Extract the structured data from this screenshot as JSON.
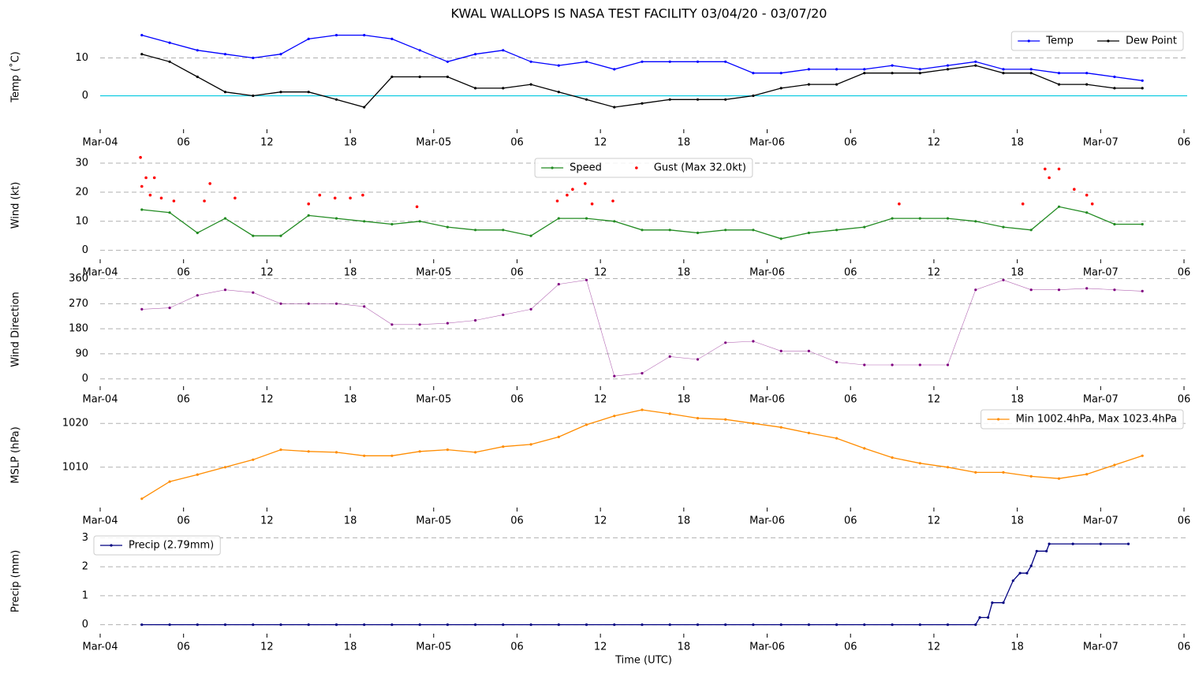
{
  "chart_data": [
    {
      "type": "line",
      "title": "KWAL WALLOPS IS NASA TEST FACILITY 03/04/20 - 03/07/20",
      "ylabel": "Temp ($^\\circ$C)",
      "x": [
        3,
        5,
        7,
        9,
        11,
        13,
        15,
        17,
        19,
        21,
        23,
        25,
        27,
        29,
        31,
        33,
        35,
        37,
        39,
        41,
        43,
        45,
        47,
        49,
        51,
        53,
        55,
        57,
        59,
        61,
        63,
        65,
        67,
        69,
        71,
        73,
        75
      ],
      "xlim": [
        0,
        78
      ],
      "xticks": [
        {
          "value": 0,
          "label": "Mar-04"
        },
        {
          "value": 6,
          "label": "06"
        },
        {
          "value": 12,
          "label": "12"
        },
        {
          "value": 18,
          "label": "18"
        },
        {
          "value": 24,
          "label": "Mar-05"
        },
        {
          "value": 30,
          "label": "06"
        },
        {
          "value": 36,
          "label": "12"
        },
        {
          "value": 42,
          "label": "18"
        },
        {
          "value": 48,
          "label": "Mar-06"
        },
        {
          "value": 54,
          "label": "06"
        },
        {
          "value": 60,
          "label": "12"
        },
        {
          "value": 66,
          "label": "18"
        },
        {
          "value": 72,
          "label": "Mar-07"
        },
        {
          "value": 78,
          "label": "06"
        }
      ],
      "ylim": [
        -8,
        18
      ],
      "yticks": [
        0,
        10
      ],
      "grid": true,
      "legend": "upper right",
      "hline": 0,
      "hline_color": "#00c8e0",
      "series": [
        {
          "name": "Temp",
          "color": "#0000ff",
          "values": [
            16,
            14,
            12,
            11,
            10,
            11,
            15,
            16,
            16,
            15,
            12,
            9,
            11,
            12,
            9,
            8,
            9,
            7,
            9,
            9,
            9,
            9,
            6,
            6,
            7,
            7,
            7,
            8,
            7,
            8,
            9,
            7,
            7,
            6,
            6,
            5,
            4
          ]
        },
        {
          "name": "Dew Point",
          "color": "#000000",
          "values": [
            11,
            9,
            5,
            1,
            0,
            1,
            1,
            -1,
            -3,
            5,
            5,
            5,
            2,
            2,
            3,
            1,
            -1,
            -3,
            -2,
            -1,
            -1,
            -1,
            0,
            2,
            3,
            3,
            6,
            6,
            6,
            7,
            8,
            6,
            6,
            3,
            3,
            2,
            2
          ]
        }
      ]
    },
    {
      "type": "line",
      "ylabel": "Wind (kt)",
      "x": [
        3,
        5,
        7,
        9,
        11,
        13,
        15,
        17,
        19,
        21,
        23,
        25,
        27,
        29,
        31,
        33,
        35,
        37,
        39,
        41,
        43,
        45,
        47,
        49,
        51,
        53,
        55,
        57,
        59,
        61,
        63,
        65,
        67,
        69,
        71,
        73,
        75
      ],
      "xlim": [
        0,
        78
      ],
      "xticks": [
        {
          "value": 0,
          "label": "Mar-04"
        },
        {
          "value": 6,
          "label": "06"
        },
        {
          "value": 12,
          "label": "12"
        },
        {
          "value": 18,
          "label": "18"
        },
        {
          "value": 24,
          "label": "Mar-05"
        },
        {
          "value": 30,
          "label": "06"
        },
        {
          "value": 36,
          "label": "12"
        },
        {
          "value": 42,
          "label": "18"
        },
        {
          "value": 48,
          "label": "Mar-06"
        },
        {
          "value": 54,
          "label": "06"
        },
        {
          "value": 60,
          "label": "12"
        },
        {
          "value": 66,
          "label": "18"
        },
        {
          "value": 72,
          "label": "Mar-07"
        },
        {
          "value": 78,
          "label": "06"
        }
      ],
      "ylim": [
        -2,
        33
      ],
      "yticks": [
        0,
        10,
        20,
        30
      ],
      "grid": true,
      "legend": "upper center",
      "series": [
        {
          "name": "Speed",
          "color": "#228b22",
          "values": [
            14,
            13,
            6,
            11,
            5,
            5,
            12,
            11,
            10,
            9,
            10,
            8,
            7,
            7,
            5,
            11,
            11,
            10,
            7,
            7,
            6,
            7,
            7,
            4,
            6,
            7,
            8,
            11,
            11,
            11,
            10,
            8,
            7,
            15,
            13,
            9,
            9
          ]
        },
        {
          "name": "Gust (Max 32.0kt)",
          "color": "#ff0000",
          "kind": "scatter",
          "x": [
            2.9,
            3.0,
            3.3,
            3.6,
            3.9,
            4.4,
            5.3,
            7.5,
            7.9,
            9.7,
            15.0,
            15.8,
            16.9,
            18.0,
            18.9,
            22.8,
            32.9,
            33.6,
            34.0,
            34.9,
            35.4,
            36.9,
            57.5,
            66.4,
            68.0,
            68.3,
            69.0,
            70.1,
            71.0,
            71.4
          ],
          "values": [
            32,
            22,
            25,
            19,
            25,
            18,
            17,
            17,
            23,
            18,
            16,
            19,
            18,
            18,
            19,
            15,
            17,
            19,
            21,
            23,
            16,
            17,
            16,
            16,
            28,
            25,
            28,
            21,
            19,
            16
          ]
        }
      ]
    },
    {
      "type": "line",
      "ylabel": "Wind Direction",
      "x": [
        3,
        5,
        7,
        9,
        11,
        13,
        15,
        17,
        19,
        21,
        23,
        25,
        27,
        29,
        31,
        33,
        35,
        37,
        39,
        41,
        43,
        45,
        47,
        49,
        51,
        53,
        55,
        57,
        59,
        61,
        63,
        65,
        67,
        69,
        71,
        73,
        75
      ],
      "xlim": [
        0,
        78
      ],
      "xticks": [
        {
          "value": 0,
          "label": "Mar-04"
        },
        {
          "value": 6,
          "label": "06"
        },
        {
          "value": 12,
          "label": "12"
        },
        {
          "value": 18,
          "label": "18"
        },
        {
          "value": 24,
          "label": "Mar-05"
        },
        {
          "value": 30,
          "label": "06"
        },
        {
          "value": 36,
          "label": "12"
        },
        {
          "value": 42,
          "label": "18"
        },
        {
          "value": 48,
          "label": "Mar-06"
        },
        {
          "value": 54,
          "label": "06"
        },
        {
          "value": 60,
          "label": "12"
        },
        {
          "value": 66,
          "label": "18"
        },
        {
          "value": 72,
          "label": "Mar-07"
        },
        {
          "value": 78,
          "label": "06"
        }
      ],
      "ylim": [
        -15,
        370
      ],
      "yticks": [
        0,
        90,
        180,
        270,
        360
      ],
      "grid": true,
      "series": [
        {
          "color": "#800080",
          "thin_line": true,
          "values": [
            250,
            255,
            300,
            320,
            310,
            270,
            270,
            270,
            260,
            195,
            195,
            200,
            210,
            230,
            250,
            340,
            355,
            10,
            20,
            80,
            70,
            130,
            135,
            100,
            100,
            60,
            50,
            50,
            50,
            50,
            320,
            355,
            320,
            320,
            325,
            320,
            315
          ]
        }
      ]
    },
    {
      "type": "line",
      "ylabel": "MSLP (hPa)",
      "x": [
        3,
        5,
        7,
        9,
        11,
        13,
        15,
        17,
        19,
        21,
        23,
        25,
        27,
        29,
        31,
        33,
        35,
        37,
        39,
        41,
        43,
        45,
        47,
        49,
        51,
        53,
        55,
        57,
        59,
        61,
        63,
        65,
        67,
        69,
        71,
        73,
        75
      ],
      "xlim": [
        0,
        78
      ],
      "xticks": [
        {
          "value": 0,
          "label": "Mar-04"
        },
        {
          "value": 6,
          "label": "06"
        },
        {
          "value": 12,
          "label": "12"
        },
        {
          "value": 18,
          "label": "18"
        },
        {
          "value": 24,
          "label": "Mar-05"
        },
        {
          "value": 30,
          "label": "06"
        },
        {
          "value": 36,
          "label": "12"
        },
        {
          "value": 42,
          "label": "18"
        },
        {
          "value": 48,
          "label": "Mar-06"
        },
        {
          "value": 54,
          "label": "06"
        },
        {
          "value": 60,
          "label": "12"
        },
        {
          "value": 66,
          "label": "18"
        },
        {
          "value": 72,
          "label": "Mar-07"
        },
        {
          "value": 78,
          "label": "06"
        }
      ],
      "ylim": [
        1001.5,
        1024
      ],
      "yticks": [
        1010,
        1020
      ],
      "grid": true,
      "legend": "upper right",
      "series": [
        {
          "name": "Min 1002.4hPa, Max 1023.4hPa",
          "color": "#ff8c00",
          "values": [
            1002.8,
            1006.7,
            1008.3,
            1010,
            1011.7,
            1014,
            1013.6,
            1013.4,
            1012.6,
            1012.6,
            1013.6,
            1014,
            1013.4,
            1014.7,
            1015.2,
            1016.9,
            1019.7,
            1021.7,
            1023.1,
            1022.2,
            1021.2,
            1020.9,
            1020,
            1019.1,
            1017.8,
            1016.6,
            1014.3,
            1012.2,
            1010.9,
            1010,
            1008.8,
            1008.8,
            1007.9,
            1007.4,
            1008.4,
            1010.5,
            1012.6
          ]
        }
      ]
    },
    {
      "type": "line",
      "ylabel": "Precip (mm)",
      "xlabel": "Time (UTC)",
      "x": [
        3,
        5,
        7,
        9,
        11,
        13,
        15,
        17,
        19,
        21,
        23,
        25,
        27,
        29,
        31,
        33,
        35,
        37,
        39,
        41,
        43,
        45,
        47,
        49,
        51,
        53,
        55,
        57,
        59,
        61,
        63,
        63.3,
        63.9,
        64.2,
        65,
        65.7,
        66.2,
        66.7,
        67,
        67.4,
        68.1,
        68.3,
        70,
        72,
        74
      ],
      "xlim": [
        0,
        78
      ],
      "xticks": [
        {
          "value": 0,
          "label": "Mar-04"
        },
        {
          "value": 6,
          "label": "06"
        },
        {
          "value": 12,
          "label": "12"
        },
        {
          "value": 18,
          "label": "18"
        },
        {
          "value": 24,
          "label": "Mar-05"
        },
        {
          "value": 30,
          "label": "06"
        },
        {
          "value": 36,
          "label": "12"
        },
        {
          "value": 42,
          "label": "18"
        },
        {
          "value": 48,
          "label": "Mar-06"
        },
        {
          "value": 54,
          "label": "06"
        },
        {
          "value": 60,
          "label": "12"
        },
        {
          "value": 66,
          "label": "18"
        },
        {
          "value": 72,
          "label": "Mar-07"
        },
        {
          "value": 78,
          "label": "06"
        }
      ],
      "ylim": [
        -0.2,
        3.2
      ],
      "yticks": [
        0,
        1,
        2,
        3
      ],
      "grid": true,
      "legend": "upper left",
      "series": [
        {
          "name": "Precip (2.79mm)",
          "color": "#000080",
          "values": [
            0,
            0,
            0,
            0,
            0,
            0,
            0,
            0,
            0,
            0,
            0,
            0,
            0,
            0,
            0,
            0,
            0,
            0,
            0,
            0,
            0,
            0,
            0,
            0,
            0,
            0,
            0,
            0,
            0,
            0,
            0,
            0.25,
            0.25,
            0.76,
            0.76,
            1.52,
            1.78,
            1.78,
            2.03,
            2.54,
            2.54,
            2.79,
            2.79,
            2.79,
            2.79
          ]
        }
      ]
    }
  ]
}
